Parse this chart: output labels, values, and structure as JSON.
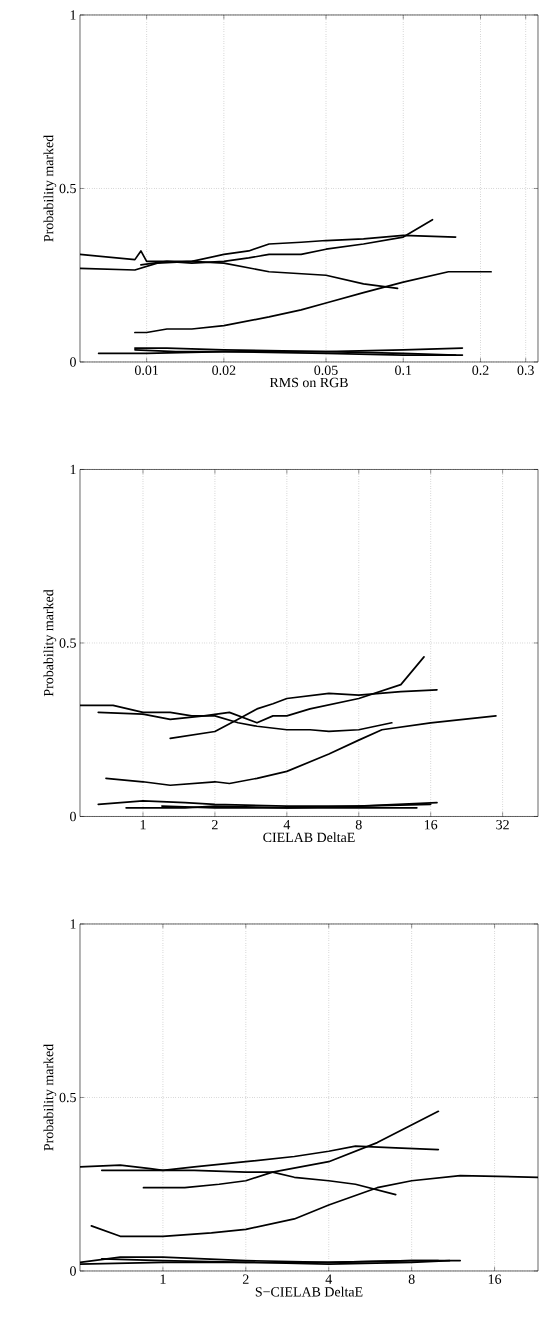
{
  "chart_data": [
    {
      "type": "line",
      "xlabel": "RMS on RGB",
      "ylabel": "Probability marked",
      "log": "x",
      "grid": true,
      "xlim": [
        0.0055,
        0.335
      ],
      "ylim": [
        0,
        1
      ],
      "xticks": [
        0.01,
        0.02,
        0.05,
        0.1,
        0.2,
        0.3
      ],
      "yticks": [
        0,
        0.5,
        1
      ],
      "series": [
        {
          "color": "#000000",
          "x": [
            0.0055,
            0.009,
            0.0095,
            0.01,
            0.015,
            0.02,
            0.03,
            0.05,
            0.07,
            0.095
          ],
          "values": [
            0.31,
            0.295,
            0.32,
            0.29,
            0.29,
            0.285,
            0.26,
            0.25,
            0.225,
            0.212
          ]
        },
        {
          "color": "#000000",
          "x": [
            0.0055,
            0.009,
            0.011,
            0.015,
            0.02,
            0.025,
            0.03,
            0.04,
            0.05,
            0.07,
            0.1,
            0.16
          ],
          "values": [
            0.27,
            0.265,
            0.285,
            0.29,
            0.31,
            0.32,
            0.34,
            0.345,
            0.35,
            0.355,
            0.365,
            0.36
          ]
        },
        {
          "color": "#000000",
          "x": [
            0.0095,
            0.012,
            0.015,
            0.02,
            0.025,
            0.03,
            0.04,
            0.05,
            0.07,
            0.1,
            0.13
          ],
          "values": [
            0.28,
            0.29,
            0.285,
            0.29,
            0.3,
            0.31,
            0.31,
            0.325,
            0.34,
            0.36,
            0.41
          ]
        },
        {
          "color": "#000000",
          "x": [
            0.009,
            0.01,
            0.012,
            0.015,
            0.02,
            0.03,
            0.04,
            0.05,
            0.07,
            0.1,
            0.15,
            0.22
          ],
          "values": [
            0.085,
            0.085,
            0.095,
            0.095,
            0.105,
            0.13,
            0.15,
            0.17,
            0.2,
            0.23,
            0.26,
            0.26
          ]
        },
        {
          "color": "#000000",
          "x": [
            0.0065,
            0.01,
            0.02,
            0.05,
            0.1,
            0.17
          ],
          "values": [
            0.025,
            0.025,
            0.03,
            0.03,
            0.035,
            0.04
          ]
        },
        {
          "color": "#000000",
          "x": [
            0.009,
            0.012,
            0.02,
            0.05,
            0.1,
            0.16
          ],
          "values": [
            0.04,
            0.04,
            0.035,
            0.03,
            0.025,
            0.02
          ]
        },
        {
          "color": "#000000",
          "x": [
            0.009,
            0.013,
            0.02,
            0.05,
            0.1,
            0.17
          ],
          "values": [
            0.035,
            0.03,
            0.03,
            0.025,
            0.02,
            0.02
          ]
        }
      ]
    },
    {
      "type": "line",
      "xlabel": "CIELAB DeltaE",
      "ylabel": "Probability marked",
      "log": "x",
      "grid": true,
      "xlim": [
        0.545,
        45
      ],
      "ylim": [
        0,
        1
      ],
      "xticks": [
        1,
        2,
        4,
        8,
        16,
        32
      ],
      "yticks": [
        0,
        0.5,
        1
      ],
      "series": [
        {
          "color": "#000000",
          "x": [
            0.545,
            0.75,
            1,
            1.3,
            1.6,
            2,
            2.5,
            3,
            4,
            5,
            6,
            8,
            11
          ],
          "values": [
            0.32,
            0.32,
            0.3,
            0.3,
            0.29,
            0.29,
            0.27,
            0.26,
            0.25,
            0.25,
            0.245,
            0.25,
            0.27
          ]
        },
        {
          "color": "#000000",
          "x": [
            0.65,
            1,
            1.3,
            1.8,
            2.3,
            3,
            3.5,
            4,
            5,
            8,
            12,
            15
          ],
          "values": [
            0.3,
            0.295,
            0.28,
            0.29,
            0.3,
            0.27,
            0.29,
            0.29,
            0.31,
            0.34,
            0.38,
            0.46
          ]
        },
        {
          "color": "#000000",
          "x": [
            1.3,
            2,
            2.5,
            3,
            3.5,
            4,
            6,
            8,
            12,
            17
          ],
          "values": [
            0.225,
            0.245,
            0.28,
            0.31,
            0.325,
            0.34,
            0.355,
            0.35,
            0.36,
            0.365
          ]
        },
        {
          "color": "#000000",
          "x": [
            0.7,
            1,
            1.3,
            2,
            2.3,
            3,
            4,
            6,
            8,
            10,
            16,
            30
          ],
          "values": [
            0.11,
            0.1,
            0.09,
            0.1,
            0.095,
            0.11,
            0.13,
            0.18,
            0.22,
            0.25,
            0.27,
            0.29
          ]
        },
        {
          "color": "#000000",
          "x": [
            0.65,
            1,
            1.5,
            2,
            4,
            8,
            17
          ],
          "values": [
            0.035,
            0.045,
            0.04,
            0.035,
            0.03,
            0.03,
            0.04
          ]
        },
        {
          "color": "#000000",
          "x": [
            0.85,
            1.5,
            2,
            4,
            8,
            14
          ],
          "values": [
            0.025,
            0.025,
            0.03,
            0.025,
            0.025,
            0.025
          ]
        },
        {
          "color": "#000000",
          "x": [
            1.2,
            2,
            4,
            8,
            16
          ],
          "values": [
            0.03,
            0.025,
            0.025,
            0.03,
            0.035
          ]
        }
      ]
    },
    {
      "type": "line",
      "xlabel": "S−CIELAB DeltaE",
      "ylabel": "Probability marked",
      "log": "x",
      "grid": true,
      "xlim": [
        0.5,
        23
      ],
      "ylim": [
        0,
        1
      ],
      "xticks": [
        1,
        2,
        4,
        8,
        16
      ],
      "yticks": [
        0,
        0.5,
        1
      ],
      "series": [
        {
          "color": "#000000",
          "x": [
            0.5,
            0.7,
            0.9,
            1,
            1.3,
            2,
            2.5,
            3,
            4,
            5,
            7
          ],
          "values": [
            0.3,
            0.305,
            0.295,
            0.29,
            0.29,
            0.285,
            0.285,
            0.27,
            0.26,
            0.25,
            0.22
          ]
        },
        {
          "color": "#000000",
          "x": [
            0.6,
            1,
            1.3,
            2,
            3,
            4,
            5,
            7,
            10
          ],
          "values": [
            0.29,
            0.29,
            0.3,
            0.315,
            0.33,
            0.345,
            0.36,
            0.355,
            0.35
          ]
        },
        {
          "color": "#000000",
          "x": [
            0.85,
            1.2,
            1.6,
            2,
            2.5,
            4,
            6,
            10
          ],
          "values": [
            0.24,
            0.24,
            0.25,
            0.26,
            0.285,
            0.315,
            0.37,
            0.46
          ]
        },
        {
          "color": "#000000",
          "x": [
            0.55,
            0.7,
            1,
            1.5,
            2,
            3,
            4,
            6,
            8,
            12,
            23
          ],
          "values": [
            0.13,
            0.1,
            0.1,
            0.11,
            0.12,
            0.15,
            0.19,
            0.24,
            0.26,
            0.275,
            0.27
          ]
        },
        {
          "color": "#000000",
          "x": [
            0.5,
            0.7,
            1,
            2,
            4,
            8,
            12
          ],
          "values": [
            0.025,
            0.04,
            0.04,
            0.03,
            0.025,
            0.03,
            0.03
          ]
        },
        {
          "color": "#000000",
          "x": [
            0.6,
            1,
            2,
            4,
            8,
            10
          ],
          "values": [
            0.035,
            0.03,
            0.025,
            0.025,
            0.03,
            0.03
          ]
        },
        {
          "color": "#000000",
          "x": [
            0.5,
            1,
            2,
            4,
            8,
            11
          ],
          "values": [
            0.02,
            0.025,
            0.025,
            0.02,
            0.025,
            0.03
          ]
        }
      ]
    }
  ]
}
